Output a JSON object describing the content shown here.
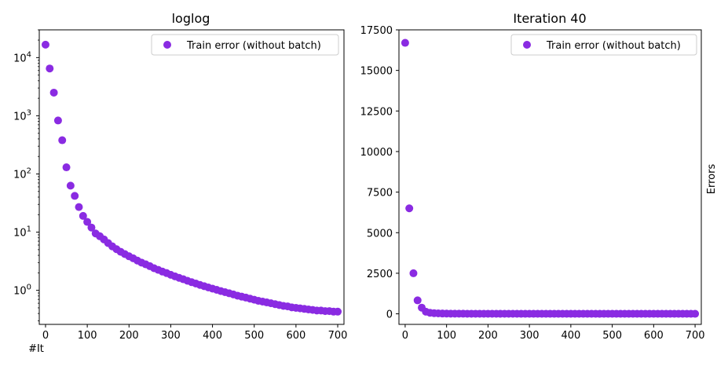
{
  "chart_data": [
    {
      "type": "scatter",
      "title": "loglog",
      "xlabel": "#It",
      "ylabel": "",
      "y_scale": "log",
      "xlim": [
        -15,
        715
      ],
      "ylim": [
        0.26,
        30000
      ],
      "x_ticks": [
        0,
        100,
        200,
        300,
        400,
        500,
        600,
        700
      ],
      "x_tick_labels": [
        "0",
        "100",
        "200",
        "300",
        "400",
        "500",
        "600",
        "700"
      ],
      "y_ticks": [
        1,
        10,
        100,
        1000,
        10000
      ],
      "y_tick_labels": [
        {
          "base": "10",
          "exp": "0"
        },
        {
          "base": "10",
          "exp": "1"
        },
        {
          "base": "10",
          "exp": "2"
        },
        {
          "base": "10",
          "exp": "3"
        },
        {
          "base": "10",
          "exp": "4"
        }
      ],
      "legend_position": "top-right",
      "grid": false,
      "series": [
        {
          "name": "Train error (without batch)",
          "color": "#8a2be2",
          "x": [
            0,
            10,
            20,
            30,
            40,
            50,
            60,
            70,
            80,
            90,
            100,
            110,
            120,
            130,
            140,
            150,
            160,
            170,
            180,
            190,
            200,
            210,
            220,
            230,
            240,
            250,
            260,
            270,
            280,
            290,
            300,
            310,
            320,
            330,
            340,
            350,
            360,
            370,
            380,
            390,
            400,
            410,
            420,
            430,
            440,
            450,
            460,
            470,
            480,
            490,
            500,
            510,
            520,
            530,
            540,
            550,
            560,
            570,
            580,
            590,
            600,
            610,
            620,
            630,
            640,
            650,
            660,
            670,
            680,
            690,
            700
          ],
          "y": [
            16700,
            6500,
            2500,
            830,
            380,
            130,
            63,
            42,
            27,
            19,
            15,
            12,
            9.5,
            8.5,
            7.5,
            6.5,
            5.7,
            5.1,
            4.6,
            4.2,
            3.85,
            3.55,
            3.25,
            3.0,
            2.8,
            2.6,
            2.4,
            2.25,
            2.1,
            1.98,
            1.85,
            1.74,
            1.64,
            1.55,
            1.46,
            1.38,
            1.31,
            1.24,
            1.18,
            1.12,
            1.07,
            1.02,
            0.97,
            0.93,
            0.89,
            0.85,
            0.81,
            0.78,
            0.75,
            0.72,
            0.69,
            0.66,
            0.64,
            0.62,
            0.6,
            0.58,
            0.56,
            0.54,
            0.53,
            0.51,
            0.5,
            0.49,
            0.48,
            0.47,
            0.46,
            0.45,
            0.45,
            0.44,
            0.44,
            0.43,
            0.43
          ]
        }
      ]
    },
    {
      "type": "scatter",
      "title": "Iteration 40",
      "xlabel": "",
      "ylabel": "Errors",
      "y_scale": "linear",
      "xlim": [
        -15,
        715
      ],
      "ylim": [
        -650,
        17500
      ],
      "x_ticks": [
        0,
        100,
        200,
        300,
        400,
        500,
        600,
        700
      ],
      "x_tick_labels": [
        "0",
        "100",
        "200",
        "300",
        "400",
        "500",
        "600",
        "700"
      ],
      "y_ticks": [
        0,
        2500,
        5000,
        7500,
        10000,
        12500,
        15000,
        17500
      ],
      "y_tick_labels": [
        "0",
        "2500",
        "5000",
        "7500",
        "10000",
        "12500",
        "15000",
        "17500"
      ],
      "legend_position": "top-right",
      "grid": false,
      "series": [
        {
          "name": "Train error (without batch)",
          "color": "#8a2be2",
          "x": [
            0,
            10,
            20,
            30,
            40,
            50,
            60,
            70,
            80,
            90,
            100,
            110,
            120,
            130,
            140,
            150,
            160,
            170,
            180,
            190,
            200,
            210,
            220,
            230,
            240,
            250,
            260,
            270,
            280,
            290,
            300,
            310,
            320,
            330,
            340,
            350,
            360,
            370,
            380,
            390,
            400,
            410,
            420,
            430,
            440,
            450,
            460,
            470,
            480,
            490,
            500,
            510,
            520,
            530,
            540,
            550,
            560,
            570,
            580,
            590,
            600,
            610,
            620,
            630,
            640,
            650,
            660,
            670,
            680,
            690,
            700
          ],
          "y": [
            16700,
            6500,
            2500,
            830,
            380,
            130,
            63,
            42,
            27,
            19,
            15,
            12,
            9.5,
            8.5,
            7.5,
            6.5,
            5.7,
            5.1,
            4.6,
            4.2,
            3.85,
            3.55,
            3.25,
            3.0,
            2.8,
            2.6,
            2.4,
            2.25,
            2.1,
            1.98,
            1.85,
            1.74,
            1.64,
            1.55,
            1.46,
            1.38,
            1.31,
            1.24,
            1.18,
            1.12,
            1.07,
            1.02,
            0.97,
            0.93,
            0.89,
            0.85,
            0.81,
            0.78,
            0.75,
            0.72,
            0.69,
            0.66,
            0.64,
            0.62,
            0.6,
            0.58,
            0.56,
            0.54,
            0.53,
            0.51,
            0.5,
            0.49,
            0.48,
            0.47,
            0.46,
            0.45,
            0.45,
            0.44,
            0.44,
            0.43,
            0.43
          ]
        }
      ]
    }
  ]
}
